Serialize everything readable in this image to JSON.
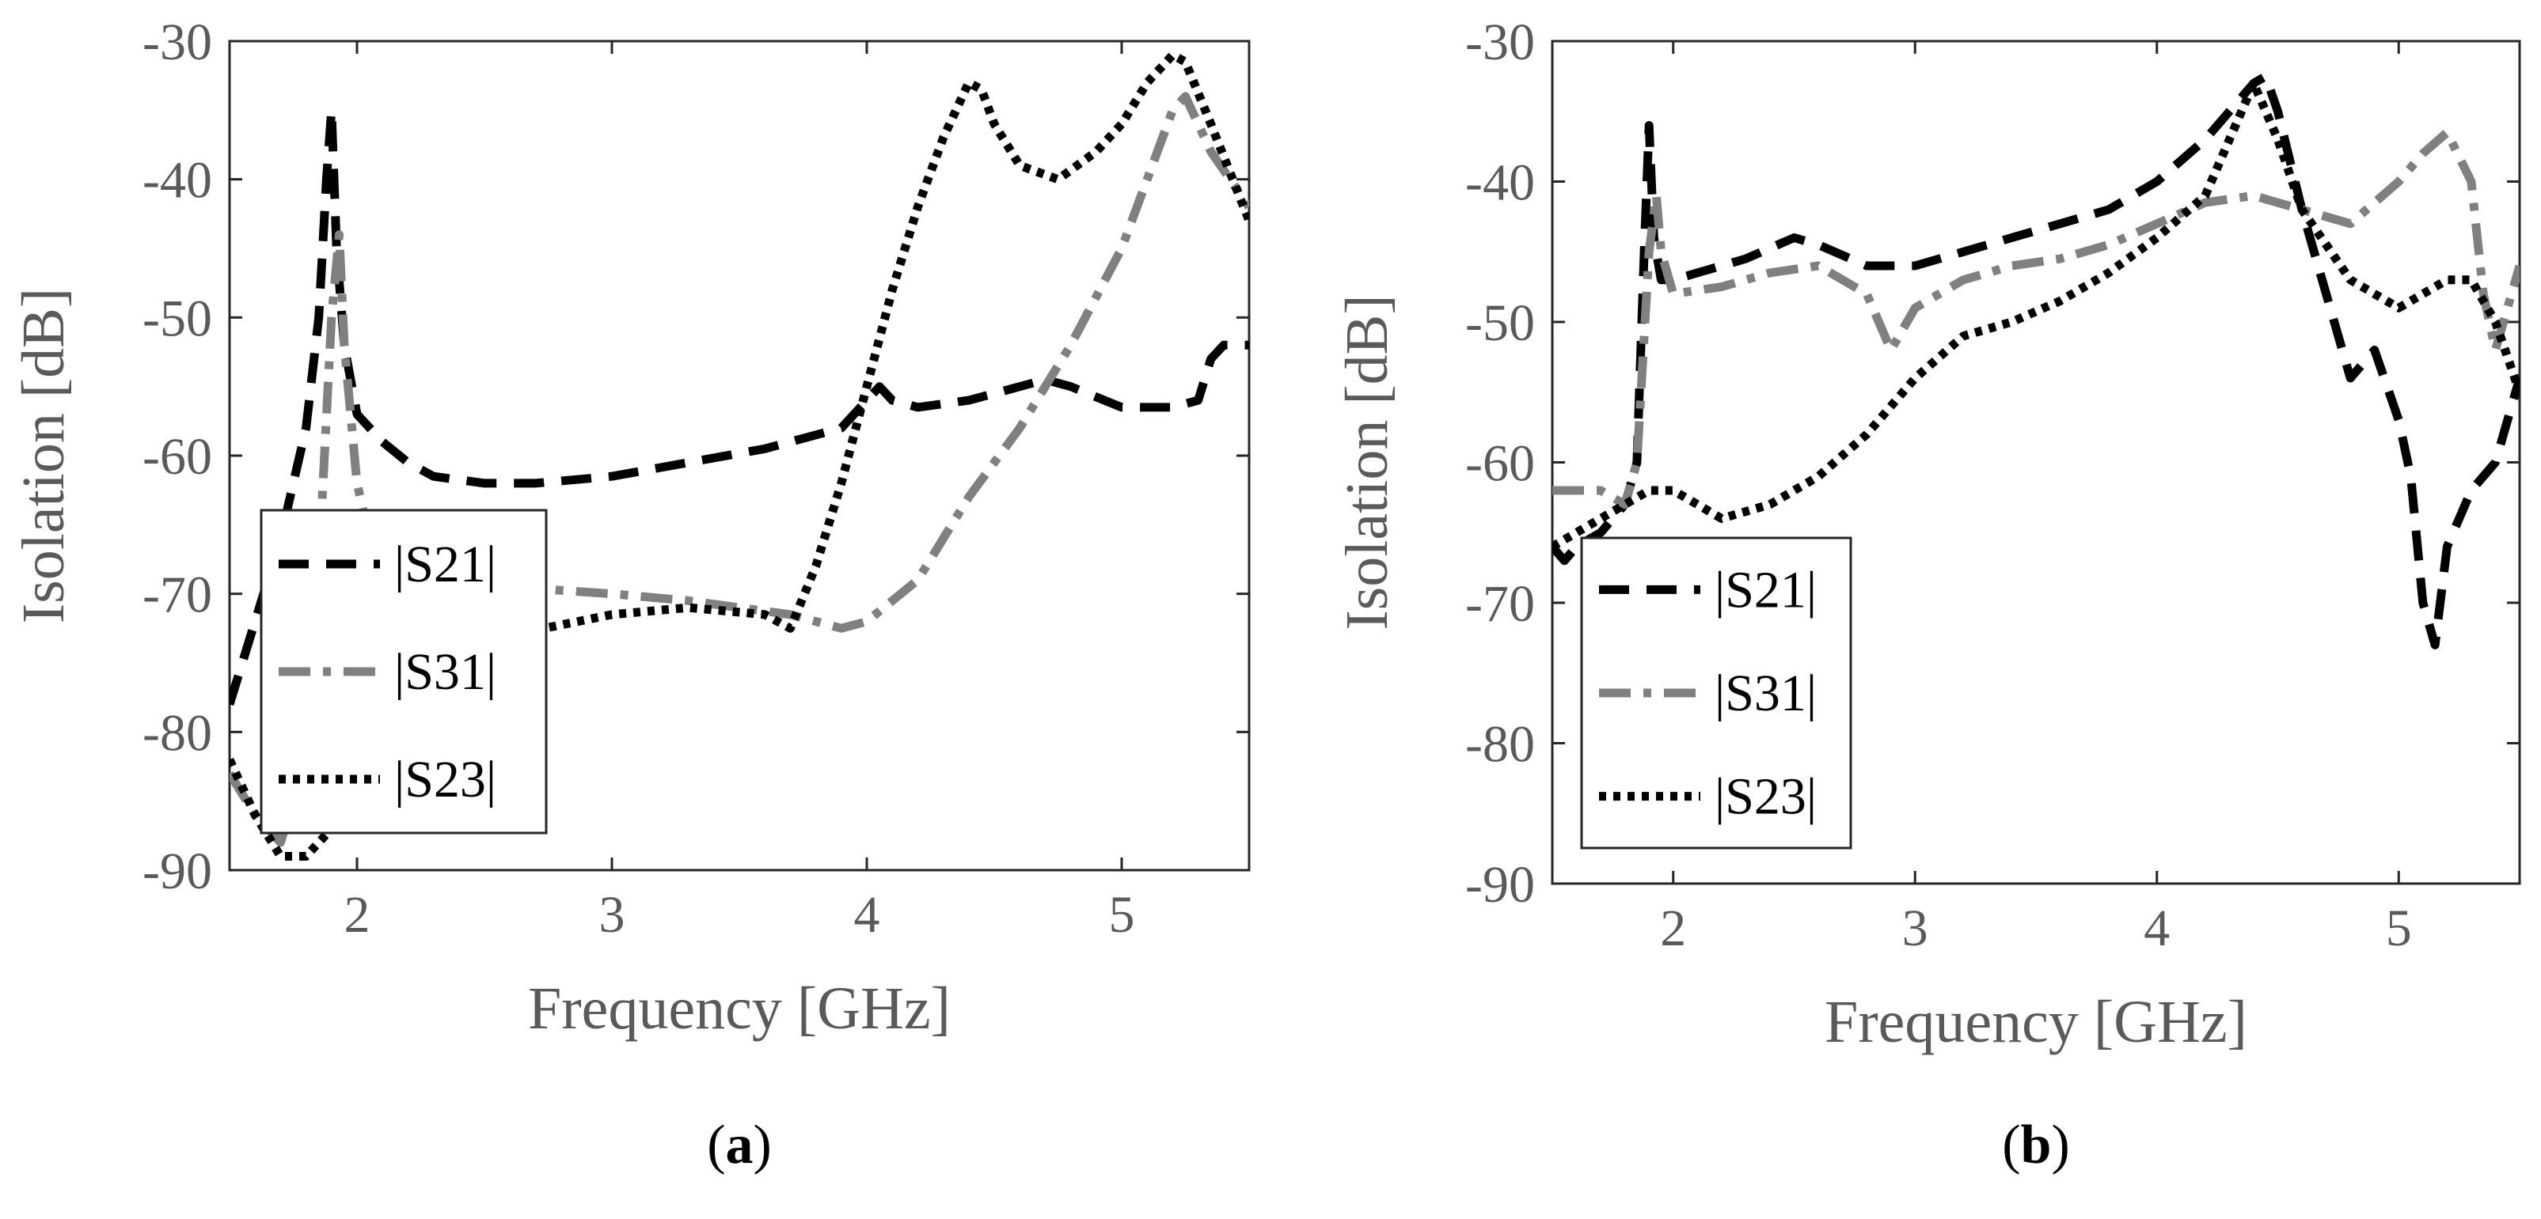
{
  "chart_data": [
    {
      "type": "line",
      "panel": "a",
      "panel_label": "a",
      "xlabel": "Frequency [GHz]",
      "ylabel": "Isolation [dB]",
      "xlim": [
        1.5,
        5.5
      ],
      "ylim": [
        -90,
        -30
      ],
      "xticks": [
        2,
        3,
        4,
        5
      ],
      "yticks": [
        -30,
        -40,
        -50,
        -60,
        -70,
        -80,
        -90
      ],
      "legend_position": "lower-left",
      "series": [
        {
          "name": "|S21|",
          "sub": "21",
          "color": "#000000",
          "style": "dash",
          "x": [
            1.5,
            1.55,
            1.6,
            1.65,
            1.7,
            1.75,
            1.8,
            1.85,
            1.88,
            1.9,
            1.92,
            1.95,
            2.0,
            2.1,
            2.2,
            2.3,
            2.5,
            2.7,
            3.0,
            3.3,
            3.6,
            3.9,
            4.0,
            4.05,
            4.1,
            4.2,
            4.4,
            4.6,
            4.7,
            4.8,
            5.0,
            5.2,
            5.3,
            5.35,
            5.4,
            5.5
          ],
          "y": [
            -78,
            -75,
            -72,
            -69,
            -66,
            -62,
            -58,
            -50,
            -40,
            -35,
            -45,
            -52,
            -57,
            -59,
            -60.5,
            -61.5,
            -62,
            -62,
            -61.5,
            -60.5,
            -59.5,
            -58,
            -56,
            -55,
            -56,
            -56.5,
            -56,
            -55,
            -54.5,
            -55,
            -56.5,
            -56.5,
            -56,
            -53,
            -52,
            -52
          ]
        },
        {
          "name": "|S31|",
          "sub": "31",
          "color": "#808080",
          "style": "dashdot",
          "x": [
            1.5,
            1.6,
            1.7,
            1.75,
            1.8,
            1.85,
            1.9,
            1.93,
            1.95,
            2.0,
            2.05,
            2.1,
            2.3,
            2.6,
            3.0,
            3.3,
            3.5,
            3.7,
            3.8,
            3.9,
            4.0,
            4.2,
            4.4,
            4.6,
            4.8,
            5.0,
            5.1,
            5.2,
            5.25,
            5.35,
            5.5
          ],
          "y": [
            -83,
            -86,
            -88,
            -85,
            -78,
            -68,
            -50,
            -44,
            -52,
            -62,
            -66,
            -68,
            -69.5,
            -69.5,
            -70,
            -70.5,
            -71,
            -71.5,
            -72,
            -72.5,
            -72,
            -69,
            -63,
            -58,
            -52,
            -45,
            -40,
            -35,
            -34,
            -38,
            -42
          ]
        },
        {
          "name": "|S23|",
          "sub": "23",
          "color": "#000000",
          "style": "dot",
          "x": [
            1.5,
            1.6,
            1.7,
            1.8,
            1.9,
            2.0,
            2.1,
            2.3,
            2.6,
            3.0,
            3.3,
            3.6,
            3.7,
            3.8,
            3.9,
            4.0,
            4.1,
            4.2,
            4.3,
            4.4,
            4.45,
            4.5,
            4.6,
            4.75,
            4.9,
            5.0,
            5.1,
            5.2,
            5.25,
            5.35,
            5.5
          ],
          "y": [
            -82,
            -86,
            -89,
            -89,
            -87,
            -84,
            -80,
            -76,
            -73,
            -71.5,
            -71,
            -71.5,
            -72.5,
            -68,
            -62,
            -55,
            -48,
            -42,
            -37,
            -33,
            -33.5,
            -36,
            -39,
            -40,
            -38,
            -36,
            -33,
            -31,
            -31.5,
            -36,
            -43
          ]
        }
      ]
    },
    {
      "type": "line",
      "panel": "b",
      "panel_label": "b",
      "xlabel": "Frequency [GHz]",
      "ylabel": "Isolation [dB]",
      "xlim": [
        1.5,
        5.5
      ],
      "ylim": [
        -90,
        -30
      ],
      "xticks": [
        2,
        3,
        4,
        5
      ],
      "yticks": [
        -30,
        -40,
        -50,
        -60,
        -70,
        -80,
        -90
      ],
      "legend_position": "lower-left",
      "series": [
        {
          "name": "|S21|",
          "sub": "21",
          "color": "#000000",
          "style": "dash",
          "x": [
            1.5,
            1.55,
            1.6,
            1.7,
            1.8,
            1.85,
            1.88,
            1.9,
            1.92,
            1.95,
            2.0,
            2.1,
            2.2,
            2.3,
            2.5,
            2.6,
            2.8,
            3.0,
            3.2,
            3.4,
            3.6,
            3.8,
            4.0,
            4.2,
            4.3,
            4.4,
            4.45,
            4.5,
            4.6,
            4.7,
            4.8,
            4.9,
            5.0,
            5.05,
            5.1,
            5.15,
            5.2,
            5.3,
            5.4,
            5.5
          ],
          "y": [
            -66,
            -67,
            -66,
            -65,
            -63,
            -60,
            -45,
            -36,
            -44,
            -47,
            -47,
            -46.5,
            -46,
            -45.5,
            -44,
            -44.5,
            -46,
            -46,
            -45,
            -44,
            -43,
            -42,
            -40,
            -37,
            -35,
            -33,
            -32.5,
            -35,
            -42,
            -48,
            -54,
            -52,
            -57,
            -61,
            -70,
            -73,
            -66,
            -62,
            -60,
            -54
          ]
        },
        {
          "name": "|S31|",
          "sub": "31",
          "color": "#808080",
          "style": "dashdot",
          "x": [
            1.5,
            1.6,
            1.7,
            1.8,
            1.85,
            1.9,
            1.93,
            1.95,
            2.0,
            2.2,
            2.4,
            2.6,
            2.8,
            2.9,
            3.0,
            3.2,
            3.4,
            3.6,
            3.8,
            4.0,
            4.2,
            4.4,
            4.6,
            4.8,
            5.0,
            5.1,
            5.2,
            5.3,
            5.35,
            5.4,
            5.5
          ],
          "y": [
            -62,
            -62,
            -62,
            -63,
            -60,
            -45,
            -41,
            -45,
            -48,
            -47.5,
            -46.5,
            -46,
            -48,
            -52,
            -49,
            -47,
            -46,
            -45.5,
            -44.5,
            -43,
            -41.5,
            -41,
            -42,
            -43,
            -40,
            -38,
            -36.5,
            -40,
            -48,
            -52,
            -46
          ]
        },
        {
          "name": "|S23|",
          "sub": "23",
          "color": "#000000",
          "style": "dot",
          "x": [
            1.5,
            1.6,
            1.7,
            1.8,
            1.9,
            2.0,
            2.2,
            2.4,
            2.6,
            2.8,
            3.0,
            3.2,
            3.4,
            3.6,
            3.8,
            4.0,
            4.2,
            4.3,
            4.4,
            4.5,
            4.6,
            4.8,
            5.0,
            5.2,
            5.3,
            5.4,
            5.5
          ],
          "y": [
            -66,
            -65,
            -64,
            -63,
            -62,
            -62,
            -64,
            -63,
            -61,
            -58,
            -54,
            -51,
            -50,
            -48.5,
            -46.5,
            -44,
            -41,
            -37,
            -33,
            -37,
            -42,
            -47,
            -49,
            -47,
            -47,
            -50,
            -55
          ]
        }
      ]
    }
  ]
}
